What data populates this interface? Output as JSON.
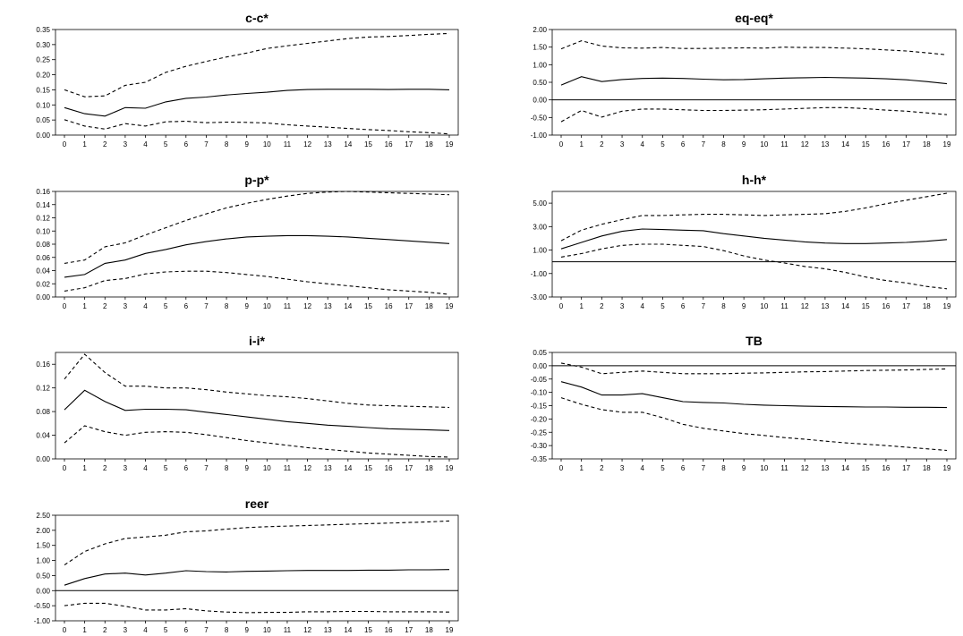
{
  "chart_data": [
    {
      "type": "line",
      "title": "c-c*",
      "x": [
        0,
        1,
        2,
        3,
        4,
        5,
        6,
        7,
        8,
        9,
        10,
        11,
        12,
        13,
        14,
        15,
        16,
        17,
        18,
        19
      ],
      "ylim": [
        0,
        0.35
      ],
      "yticks": [
        0,
        0.05,
        0.1,
        0.15,
        0.2,
        0.25,
        0.3,
        0.35
      ],
      "ytick_labels": [
        "0.00",
        "0.05",
        "0.10",
        "0.15",
        "0.20",
        "0.25",
        "0.30",
        "0.35"
      ],
      "zero_line": false,
      "series": [
        {
          "style": "solid",
          "values": [
            0.091,
            0.071,
            0.063,
            0.091,
            0.089,
            0.11,
            0.122,
            0.126,
            0.133,
            0.138,
            0.142,
            0.148,
            0.151,
            0.152,
            0.152,
            0.152,
            0.151,
            0.152,
            0.152,
            0.15
          ]
        },
        {
          "style": "dashed",
          "values": [
            0.15,
            0.127,
            0.13,
            0.165,
            0.175,
            0.208,
            0.228,
            0.244,
            0.259,
            0.272,
            0.287,
            0.296,
            0.304,
            0.312,
            0.32,
            0.325,
            0.327,
            0.33,
            0.334,
            0.337
          ]
        },
        {
          "style": "dashed",
          "values": [
            0.051,
            0.03,
            0.02,
            0.038,
            0.03,
            0.044,
            0.046,
            0.041,
            0.043,
            0.042,
            0.04,
            0.034,
            0.03,
            0.026,
            0.022,
            0.018,
            0.015,
            0.011,
            0.008,
            0.004
          ]
        }
      ]
    },
    {
      "type": "line",
      "title": "eq-eq*",
      "x": [
        0,
        1,
        2,
        3,
        4,
        5,
        6,
        7,
        8,
        9,
        10,
        11,
        12,
        13,
        14,
        15,
        16,
        17,
        18,
        19
      ],
      "ylim": [
        -1.0,
        2.0
      ],
      "yticks": [
        -1.0,
        -0.5,
        0,
        0.5,
        1.0,
        1.5,
        2.0
      ],
      "ytick_labels": [
        "-1.00",
        "-0.50",
        "0.00",
        "0.50",
        "1.00",
        "1.50",
        "2.00"
      ],
      "zero_line": true,
      "series": [
        {
          "style": "solid",
          "values": [
            0.42,
            0.66,
            0.52,
            0.58,
            0.61,
            0.62,
            0.61,
            0.59,
            0.57,
            0.58,
            0.6,
            0.62,
            0.63,
            0.64,
            0.63,
            0.62,
            0.6,
            0.57,
            0.52,
            0.46
          ]
        },
        {
          "style": "dashed",
          "values": [
            1.45,
            1.68,
            1.53,
            1.48,
            1.47,
            1.49,
            1.46,
            1.46,
            1.47,
            1.48,
            1.47,
            1.5,
            1.49,
            1.49,
            1.47,
            1.45,
            1.42,
            1.39,
            1.34,
            1.28
          ]
        },
        {
          "style": "dashed",
          "values": [
            -0.62,
            -0.3,
            -0.49,
            -0.32,
            -0.26,
            -0.26,
            -0.28,
            -0.3,
            -0.3,
            -0.29,
            -0.28,
            -0.26,
            -0.24,
            -0.22,
            -0.22,
            -0.25,
            -0.29,
            -0.32,
            -0.37,
            -0.42
          ]
        }
      ]
    },
    {
      "type": "line",
      "title": "p-p*",
      "x": [
        0,
        1,
        2,
        3,
        4,
        5,
        6,
        7,
        8,
        9,
        10,
        11,
        12,
        13,
        14,
        15,
        16,
        17,
        18,
        19
      ],
      "ylim": [
        0,
        0.16
      ],
      "yticks": [
        0,
        0.02,
        0.04,
        0.06,
        0.08,
        0.1,
        0.12,
        0.14,
        0.16
      ],
      "ytick_labels": [
        "0.00",
        "0.02",
        "0.04",
        "0.06",
        "0.08",
        "0.10",
        "0.12",
        "0.14",
        "0.16"
      ],
      "zero_line": false,
      "series": [
        {
          "style": "solid",
          "values": [
            0.03,
            0.034,
            0.051,
            0.056,
            0.066,
            0.072,
            0.079,
            0.084,
            0.088,
            0.091,
            0.092,
            0.093,
            0.093,
            0.092,
            0.091,
            0.089,
            0.087,
            0.085,
            0.083,
            0.081
          ]
        },
        {
          "style": "dashed",
          "values": [
            0.051,
            0.056,
            0.076,
            0.082,
            0.094,
            0.105,
            0.116,
            0.126,
            0.135,
            0.142,
            0.148,
            0.153,
            0.157,
            0.159,
            0.16,
            0.159,
            0.158,
            0.157,
            0.156,
            0.155
          ]
        },
        {
          "style": "dashed",
          "values": [
            0.009,
            0.014,
            0.025,
            0.028,
            0.035,
            0.038,
            0.039,
            0.039,
            0.037,
            0.034,
            0.031,
            0.027,
            0.023,
            0.02,
            0.017,
            0.014,
            0.011,
            0.009,
            0.007,
            0.004
          ]
        }
      ]
    },
    {
      "type": "line",
      "title": "h-h*",
      "x": [
        0,
        1,
        2,
        3,
        4,
        5,
        6,
        7,
        8,
        9,
        10,
        11,
        12,
        13,
        14,
        15,
        16,
        17,
        18,
        19
      ],
      "ylim": [
        -3.0,
        6.0
      ],
      "yticks": [
        -3.0,
        -1.0,
        1.0,
        3.0,
        5.0
      ],
      "ytick_labels": [
        "-3.00",
        "-1.00",
        "1.00",
        "3.00",
        "5.00"
      ],
      "zero_line": true,
      "series": [
        {
          "style": "solid",
          "values": [
            1.1,
            1.65,
            2.2,
            2.6,
            2.8,
            2.75,
            2.7,
            2.65,
            2.4,
            2.2,
            2.0,
            1.85,
            1.7,
            1.6,
            1.55,
            1.55,
            1.6,
            1.65,
            1.75,
            1.9
          ]
        },
        {
          "style": "dashed",
          "values": [
            1.8,
            2.7,
            3.2,
            3.6,
            3.95,
            3.95,
            4.0,
            4.05,
            4.05,
            4.0,
            3.95,
            4.0,
            4.05,
            4.1,
            4.3,
            4.6,
            4.95,
            5.25,
            5.55,
            5.85
          ]
        },
        {
          "style": "dashed",
          "values": [
            0.4,
            0.7,
            1.1,
            1.4,
            1.5,
            1.5,
            1.4,
            1.3,
            0.95,
            0.5,
            0.15,
            -0.1,
            -0.4,
            -0.6,
            -0.9,
            -1.3,
            -1.6,
            -1.8,
            -2.1,
            -2.3
          ]
        }
      ]
    },
    {
      "type": "line",
      "title": "i-i*",
      "x": [
        0,
        1,
        2,
        3,
        4,
        5,
        6,
        7,
        8,
        9,
        10,
        11,
        12,
        13,
        14,
        15,
        16,
        17,
        18,
        19
      ],
      "ylim": [
        0,
        0.18
      ],
      "yticks": [
        0,
        0.04,
        0.08,
        0.12,
        0.16
      ],
      "ytick_labels": [
        "0.00",
        "0.04",
        "0.08",
        "0.12",
        "0.16"
      ],
      "zero_line": false,
      "series": [
        {
          "style": "solid",
          "values": [
            0.083,
            0.116,
            0.097,
            0.082,
            0.084,
            0.084,
            0.083,
            0.079,
            0.075,
            0.071,
            0.067,
            0.063,
            0.06,
            0.057,
            0.055,
            0.053,
            0.051,
            0.05,
            0.049,
            0.048
          ]
        },
        {
          "style": "dashed",
          "values": [
            0.135,
            0.177,
            0.146,
            0.123,
            0.123,
            0.12,
            0.12,
            0.117,
            0.113,
            0.11,
            0.107,
            0.105,
            0.102,
            0.098,
            0.094,
            0.091,
            0.09,
            0.089,
            0.088,
            0.087
          ]
        },
        {
          "style": "dashed",
          "values": [
            0.027,
            0.056,
            0.046,
            0.04,
            0.045,
            0.046,
            0.045,
            0.041,
            0.036,
            0.031,
            0.027,
            0.023,
            0.019,
            0.016,
            0.013,
            0.01,
            0.008,
            0.006,
            0.004,
            0.003
          ]
        }
      ]
    },
    {
      "type": "line",
      "title": "TB",
      "x": [
        0,
        1,
        2,
        3,
        4,
        5,
        6,
        7,
        8,
        9,
        10,
        11,
        12,
        13,
        14,
        15,
        16,
        17,
        18,
        19
      ],
      "ylim": [
        -0.35,
        0.05
      ],
      "yticks": [
        -0.35,
        -0.3,
        -0.25,
        -0.2,
        -0.15,
        -0.1,
        -0.05,
        0,
        0.05
      ],
      "ytick_labels": [
        "-0.35",
        "-0.30",
        "-0.25",
        "-0.20",
        "-0.15",
        "-0.10",
        "-0.05",
        "0.00",
        "0.05"
      ],
      "zero_line": true,
      "series": [
        {
          "style": "solid",
          "values": [
            -0.06,
            -0.08,
            -0.11,
            -0.11,
            -0.105,
            -0.12,
            -0.135,
            -0.138,
            -0.14,
            -0.145,
            -0.148,
            -0.15,
            -0.152,
            -0.153,
            -0.154,
            -0.155,
            -0.155,
            -0.156,
            -0.156,
            -0.157
          ]
        },
        {
          "style": "dashed",
          "values": [
            0.01,
            -0.005,
            -0.03,
            -0.025,
            -0.02,
            -0.025,
            -0.03,
            -0.03,
            -0.03,
            -0.028,
            -0.027,
            -0.025,
            -0.023,
            -0.022,
            -0.02,
            -0.018,
            -0.017,
            -0.016,
            -0.014,
            -0.012
          ]
        },
        {
          "style": "dashed",
          "values": [
            -0.12,
            -0.145,
            -0.165,
            -0.175,
            -0.175,
            -0.195,
            -0.22,
            -0.235,
            -0.245,
            -0.255,
            -0.262,
            -0.27,
            -0.276,
            -0.283,
            -0.29,
            -0.295,
            -0.3,
            -0.306,
            -0.312,
            -0.318
          ]
        }
      ]
    },
    {
      "type": "line",
      "title": "reer",
      "x": [
        0,
        1,
        2,
        3,
        4,
        5,
        6,
        7,
        8,
        9,
        10,
        11,
        12,
        13,
        14,
        15,
        16,
        17,
        18,
        19
      ],
      "ylim": [
        -1.0,
        2.5
      ],
      "yticks": [
        -1.0,
        -0.5,
        0,
        0.5,
        1.0,
        1.5,
        2.0,
        2.5
      ],
      "ytick_labels": [
        "-1.00",
        "-0.50",
        "0.00",
        "0.50",
        "1.00",
        "1.50",
        "2.00",
        "2.50"
      ],
      "zero_line": true,
      "series": [
        {
          "style": "solid",
          "values": [
            0.18,
            0.4,
            0.55,
            0.58,
            0.52,
            0.58,
            0.66,
            0.63,
            0.62,
            0.64,
            0.65,
            0.66,
            0.67,
            0.67,
            0.67,
            0.68,
            0.68,
            0.69,
            0.69,
            0.7
          ]
        },
        {
          "style": "dashed",
          "values": [
            0.85,
            1.3,
            1.55,
            1.73,
            1.78,
            1.84,
            1.95,
            1.98,
            2.04,
            2.09,
            2.12,
            2.14,
            2.16,
            2.18,
            2.2,
            2.22,
            2.24,
            2.26,
            2.28,
            2.31
          ]
        },
        {
          "style": "dashed",
          "values": [
            -0.5,
            -0.42,
            -0.42,
            -0.52,
            -0.64,
            -0.64,
            -0.6,
            -0.67,
            -0.71,
            -0.73,
            -0.72,
            -0.72,
            -0.7,
            -0.7,
            -0.69,
            -0.69,
            -0.7,
            -0.7,
            -0.7,
            -0.71
          ]
        }
      ]
    }
  ]
}
